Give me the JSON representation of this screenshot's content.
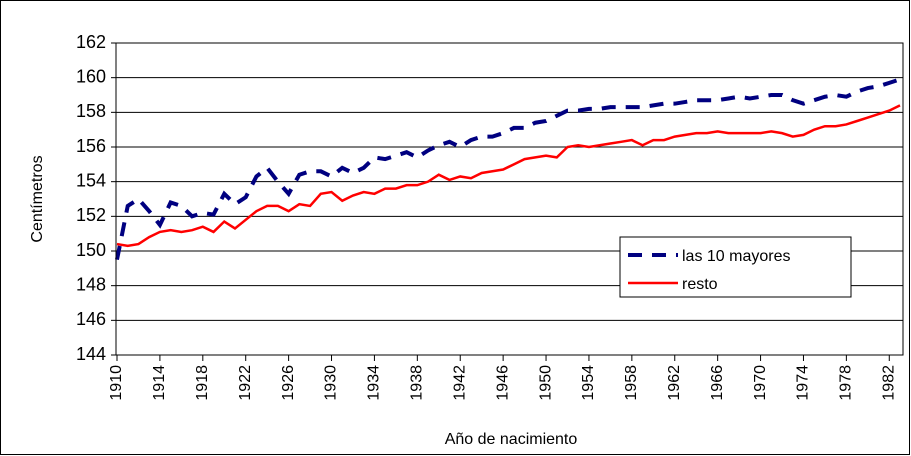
{
  "chart_data": {
    "type": "line",
    "y_label": "Centímetros",
    "x_label": "Año de nacimiento",
    "x": [
      1910,
      1911,
      1912,
      1913,
      1914,
      1915,
      1916,
      1917,
      1918,
      1919,
      1920,
      1921,
      1922,
      1923,
      1924,
      1925,
      1926,
      1927,
      1928,
      1929,
      1930,
      1931,
      1932,
      1933,
      1934,
      1935,
      1936,
      1937,
      1938,
      1939,
      1940,
      1941,
      1942,
      1943,
      1944,
      1945,
      1946,
      1947,
      1948,
      1949,
      1950,
      1951,
      1952,
      1953,
      1954,
      1955,
      1956,
      1957,
      1958,
      1959,
      1960,
      1961,
      1962,
      1963,
      1964,
      1965,
      1966,
      1967,
      1968,
      1969,
      1970,
      1971,
      1972,
      1973,
      1974,
      1975,
      1976,
      1977,
      1978,
      1979,
      1980,
      1981,
      1982,
      1983
    ],
    "series": [
      {
        "name": "las 10 mayores",
        "color": "#000080",
        "dashed": true,
        "values": [
          149.5,
          152.6,
          153,
          152.3,
          151.5,
          152.8,
          152.6,
          152,
          152.2,
          152.1,
          153.3,
          152.7,
          153.1,
          154.3,
          154.8,
          154,
          153.3,
          154.4,
          154.6,
          154.6,
          154.3,
          154.8,
          154.5,
          154.8,
          155.4,
          155.3,
          155.5,
          155.7,
          155.4,
          155.8,
          156.1,
          156.3,
          156,
          156.4,
          156.6,
          156.6,
          156.8,
          157.1,
          157.1,
          157.4,
          157.5,
          157.8,
          158.1,
          158.1,
          158.2,
          158.2,
          158.3,
          158.3,
          158.3,
          158.3,
          158.4,
          158.5,
          158.5,
          158.6,
          158.7,
          158.7,
          158.7,
          158.8,
          158.9,
          158.8,
          158.9,
          159,
          159,
          158.7,
          158.5,
          158.7,
          158.9,
          159,
          158.9,
          159.2,
          159.4,
          159.5,
          159.7,
          159.9
        ]
      },
      {
        "name": "resto",
        "color": "#ff0000",
        "dashed": false,
        "values": [
          150.4,
          150.3,
          150.4,
          150.8,
          151.1,
          151.2,
          151.1,
          151.2,
          151.4,
          151.1,
          151.7,
          151.3,
          151.8,
          152.3,
          152.6,
          152.6,
          152.3,
          152.7,
          152.6,
          153.3,
          153.4,
          152.9,
          153.2,
          153.4,
          153.3,
          153.6,
          153.6,
          153.8,
          153.8,
          154,
          154.4,
          154.1,
          154.3,
          154.2,
          154.5,
          154.6,
          154.7,
          155,
          155.3,
          155.4,
          155.5,
          155.4,
          156,
          156.1,
          156,
          156.1,
          156.2,
          156.3,
          156.4,
          156.1,
          156.4,
          156.4,
          156.6,
          156.7,
          156.8,
          156.8,
          156.9,
          156.8,
          156.8,
          156.8,
          156.8,
          156.9,
          156.8,
          156.6,
          156.7,
          157,
          157.2,
          157.2,
          157.3,
          157.5,
          157.7,
          157.9,
          158.1,
          158.4
        ]
      }
    ],
    "xlim": [
      1910,
      1983
    ],
    "xticks": [
      1910,
      1914,
      1918,
      1922,
      1926,
      1930,
      1934,
      1938,
      1942,
      1946,
      1950,
      1954,
      1958,
      1962,
      1966,
      1970,
      1974,
      1978,
      1982
    ],
    "ylim": [
      144,
      162
    ],
    "yticks": [
      144,
      146,
      148,
      150,
      152,
      154,
      156,
      158,
      160,
      162
    ],
    "grid": true,
    "legend": "bottom-right"
  }
}
